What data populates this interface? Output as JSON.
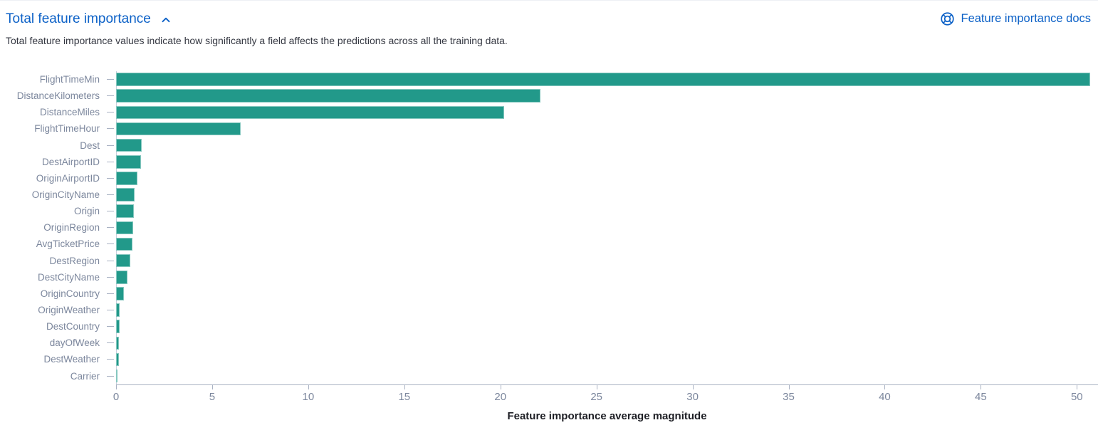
{
  "header": {
    "title": "Total feature importance",
    "collapse_icon": "chevron-up-icon",
    "docs_link_label": "Feature importance docs",
    "docs_link_icon": "help-lifering-icon"
  },
  "subtitle": "Total feature importance values indicate how significantly a field affects the predictions across all the training data.",
  "colors": {
    "bar": "#22998a",
    "link": "#0c61c7",
    "axis": "#a9b2c3",
    "tick_label": "#7c879d",
    "text": "#343741",
    "axis_title": "#1d1e24"
  },
  "chart_data": {
    "type": "bar",
    "orientation": "horizontal",
    "title": "Total feature importance",
    "categories": [
      "FlightTimeMin",
      "DistanceKilometers",
      "DistanceMiles",
      "FlightTimeHour",
      "Dest",
      "DestAirportID",
      "OriginAirportID",
      "OriginCityName",
      "Origin",
      "OriginRegion",
      "AvgTicketPrice",
      "DestRegion",
      "DestCityName",
      "OriginCountry",
      "OriginWeather",
      "DestCountry",
      "dayOfWeek",
      "DestWeather",
      "Carrier"
    ],
    "values": [
      50.7,
      22.1,
      20.2,
      6.5,
      1.35,
      1.3,
      1.1,
      0.95,
      0.92,
      0.88,
      0.85,
      0.75,
      0.6,
      0.42,
      0.18,
      0.17,
      0.16,
      0.14,
      0.06
    ],
    "xlabel": "Feature importance average magnitude",
    "ylabel": "",
    "xticks": [
      0,
      5,
      10,
      15,
      20,
      25,
      30,
      35,
      40,
      45,
      50
    ],
    "xlim": [
      0,
      51.1
    ],
    "grid": false,
    "legend": false,
    "bar_color": "#22998a"
  }
}
